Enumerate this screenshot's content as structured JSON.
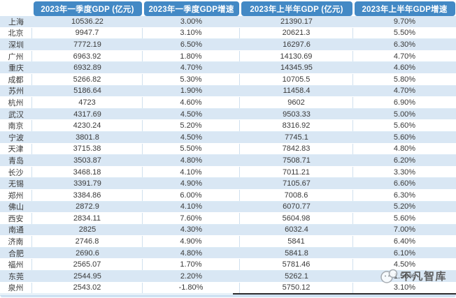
{
  "colors": {
    "header_blue": "#4389c5",
    "row_alt_blue": "#d9e7f4",
    "cell_border": "#cfe0ee",
    "text": "#3a3a3a",
    "header_text": "#ffffff",
    "watermark_text": "#474747",
    "watermark_line": "#2e2e2e"
  },
  "watermark": {
    "text": "不凡智库",
    "logo": "panda-face-logo"
  },
  "chart_data": {
    "type": "table",
    "title": "",
    "columns": [
      "",
      "2023年一季度GDP (亿元)",
      "2023年一季度GDP增速",
      "2023年上半年GDP (亿元)",
      "2023年上半年GDP增速"
    ],
    "rows": [
      [
        "上海",
        "10536.22",
        "3.00%",
        "21390.17",
        "9.70%"
      ],
      [
        "北京",
        "9947.7",
        "3.10%",
        "20621.3",
        "5.50%"
      ],
      [
        "深圳",
        "7772.19",
        "6.50%",
        "16297.6",
        "6.30%"
      ],
      [
        "广州",
        "6963.92",
        "1.80%",
        "14130.69",
        "4.70%"
      ],
      [
        "重庆",
        "6932.89",
        "4.70%",
        "14345.95",
        "4.60%"
      ],
      [
        "成都",
        "5266.82",
        "5.30%",
        "10705.5",
        "5.80%"
      ],
      [
        "苏州",
        "5186.64",
        "1.90%",
        "11458.4",
        "4.70%"
      ],
      [
        "杭州",
        "4723",
        "4.60%",
        "9602",
        "6.90%"
      ],
      [
        "武汉",
        "4317.69",
        "4.50%",
        "9503.33",
        "5.00%"
      ],
      [
        "南京",
        "4230.24",
        "5.20%",
        "8316.92",
        "5.60%"
      ],
      [
        "宁波",
        "3801.8",
        "4.50%",
        "7745.1",
        "5.60%"
      ],
      [
        "天津",
        "3715.38",
        "5.50%",
        "7842.83",
        "4.80%"
      ],
      [
        "青岛",
        "3503.87",
        "4.80%",
        "7508.71",
        "6.20%"
      ],
      [
        "长沙",
        "3468.18",
        "4.10%",
        "7011.21",
        "3.30%"
      ],
      [
        "无锡",
        "3391.79",
        "4.90%",
        "7105.67",
        "6.60%"
      ],
      [
        "郑州",
        "3384.86",
        "6.00%",
        "7008.6",
        "6.30%"
      ],
      [
        "佛山",
        "2872.9",
        "4.10%",
        "6070.77",
        "5.20%"
      ],
      [
        "西安",
        "2834.11",
        "7.60%",
        "5604.98",
        "5.60%"
      ],
      [
        "南通",
        "2825",
        "4.30%",
        "6032.4",
        "7.00%"
      ],
      [
        "济南",
        "2746.8",
        "4.90%",
        "5841",
        "6.40%"
      ],
      [
        "合肥",
        "2690.6",
        "4.80%",
        "5841.8",
        "6.10%"
      ],
      [
        "福州",
        "2565.07",
        "1.70%",
        "5781.46",
        "4.50%"
      ],
      [
        "东莞",
        "2544.95",
        "2.20%",
        "5262.1",
        "1.50%"
      ],
      [
        "泉州",
        "2543.02",
        "-1.80%",
        "5750.12",
        "3.10%"
      ]
    ]
  }
}
